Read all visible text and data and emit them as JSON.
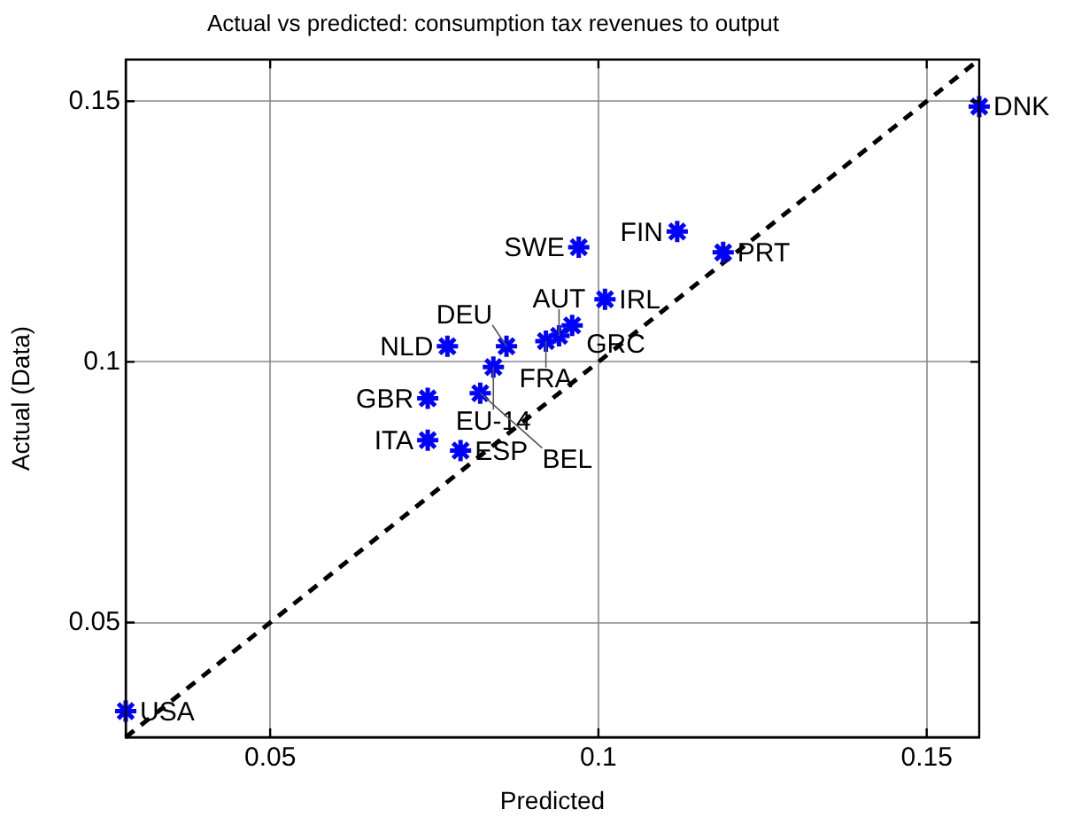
{
  "chart_data": {
    "type": "scatter",
    "title": "Actual vs predicted: consumption tax revenues to output",
    "xlabel": "Predicted",
    "ylabel": "Actual (Data)",
    "xlim": [
      0.028,
      0.158
    ],
    "ylim": [
      0.028,
      0.158
    ],
    "xticks": [
      0.05,
      0.1,
      0.15
    ],
    "yticks": [
      0.05,
      0.1,
      0.15
    ],
    "grid": true,
    "series": [
      {
        "type": "scatter",
        "color": "#0000ff",
        "marker": "cross",
        "x": [
          0.028,
          0.158,
          0.112,
          0.097,
          0.119,
          0.101,
          0.096,
          0.094,
          0.092,
          0.086,
          0.077,
          0.084,
          0.082,
          0.074,
          0.074,
          0.079
        ],
        "values": [
          0.033,
          0.149,
          0.125,
          0.122,
          0.121,
          0.112,
          0.107,
          0.105,
          0.104,
          0.103,
          0.103,
          0.099,
          0.094,
          0.093,
          0.085,
          0.083
        ]
      },
      {
        "type": "line",
        "color": "#000000",
        "line_style": "dashed",
        "marker": "none",
        "x": [
          0.028,
          0.158
        ],
        "values": [
          0.028,
          0.158
        ]
      }
    ],
    "annotations": [
      {
        "text": "USA",
        "x": 0.028,
        "y": 0.033
      },
      {
        "text": "DNK",
        "x": 0.158,
        "y": 0.149
      },
      {
        "text": "FIN",
        "x": 0.112,
        "y": 0.125
      },
      {
        "text": "SWE",
        "x": 0.097,
        "y": 0.122
      },
      {
        "text": "PRT",
        "x": 0.119,
        "y": 0.121
      },
      {
        "text": "IRL",
        "x": 0.101,
        "y": 0.112
      },
      {
        "text": "GRC",
        "x": 0.096,
        "y": 0.107
      },
      {
        "text": "AUT",
        "x": 0.094,
        "y": 0.105
      },
      {
        "text": "FRA",
        "x": 0.092,
        "y": 0.104
      },
      {
        "text": "DEU",
        "x": 0.086,
        "y": 0.103
      },
      {
        "text": "NLD",
        "x": 0.077,
        "y": 0.103
      },
      {
        "text": "EU-14",
        "x": 0.084,
        "y": 0.099
      },
      {
        "text": "BEL",
        "x": 0.082,
        "y": 0.094
      },
      {
        "text": "GBR",
        "x": 0.074,
        "y": 0.093
      },
      {
        "text": "ITA",
        "x": 0.074,
        "y": 0.085
      },
      {
        "text": "ESP",
        "x": 0.079,
        "y": 0.083
      }
    ]
  }
}
